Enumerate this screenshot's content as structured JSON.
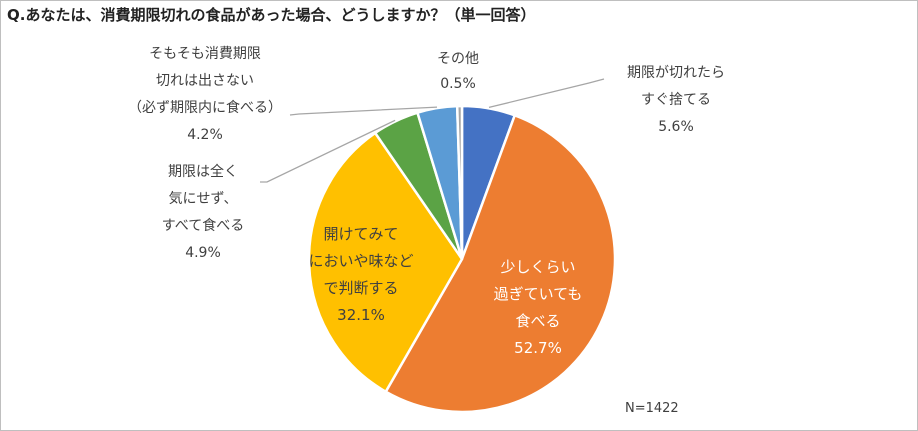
{
  "chart_data": {
    "type": "pie",
    "title": "Q.あなたは、消費期限切れの食品があった場合、どうしますか？（単一回答）",
    "note": "N=1422",
    "slices": [
      {
        "label_lines": [
          "期限が切れたら",
          "すぐ捨てる"
        ],
        "value": 5.6,
        "value_label": "5.6%",
        "color": "#4472c4"
      },
      {
        "label_lines": [
          "少しくらい",
          "過ぎていても",
          "食べる"
        ],
        "value": 52.7,
        "value_label": "52.7%",
        "color": "#ed7d31"
      },
      {
        "label_lines": [
          "開けてみて",
          "においや味など",
          "で判断する"
        ],
        "value": 32.1,
        "value_label": "32.1%",
        "color": "#ffc000"
      },
      {
        "label_lines": [
          "期限は全く",
          "気にせず、",
          "すべて食べる"
        ],
        "value": 4.9,
        "value_label": "4.9%",
        "color": "#5ba345"
      },
      {
        "label_lines": [
          "そもそも消費期限",
          "切れは出さない",
          "（必ず期限内に食べる）"
        ],
        "value": 4.2,
        "value_label": "4.2%",
        "color": "#5b9bd5"
      },
      {
        "label_lines": [
          "その他"
        ],
        "value": 0.5,
        "value_label": "0.5%",
        "color": "#a5a5a5"
      }
    ]
  }
}
